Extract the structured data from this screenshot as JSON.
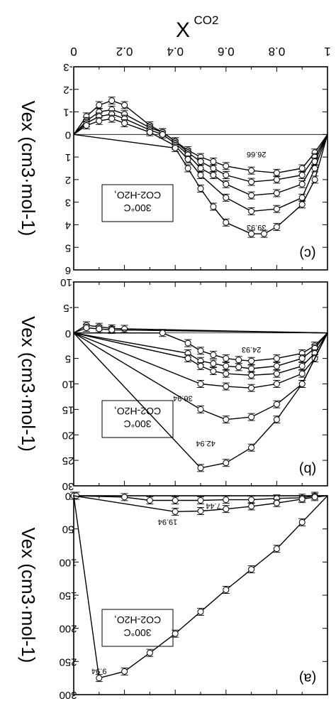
{
  "figure": {
    "top_axis_title": "X",
    "top_axis_title_sub": "CO2",
    "top_ticks": [
      "0",
      "0.2",
      "0.4",
      "0.6",
      "0.8",
      "1"
    ]
  },
  "chart_data": [
    {
      "type": "line",
      "panel_label": "(c)",
      "ylabel": "Vex (cm3·mol-1)",
      "system_label_line1": "300°C",
      "system_label_line2": "CO2-H2O,",
      "xlim": [
        0,
        1
      ],
      "ylim": [
        -3,
        6
      ],
      "y_ticks": [
        "-3",
        "-2",
        "-1",
        "0",
        "1",
        "2",
        "3",
        "4",
        "5",
        "6"
      ],
      "annotations": [
        "26.66",
        "39.93"
      ],
      "series": [
        {
          "x": [
            0.05,
            0.1,
            0.15,
            0.2,
            0.3,
            0.35,
            0.4,
            0.45,
            0.5,
            0.55,
            0.6,
            0.7,
            0.8,
            0.9,
            0.95
          ],
          "values": [
            -0.8,
            -1.3,
            -1.5,
            -1.3,
            -0.4,
            -0.1,
            0.3,
            0.7,
            1.0,
            1.2,
            1.4,
            1.6,
            1.7,
            1.5,
            0.8
          ]
        },
        {
          "x": [
            0.05,
            0.1,
            0.15,
            0.2,
            0.3,
            0.35,
            0.4,
            0.45,
            0.5,
            0.55,
            0.6,
            0.7,
            0.8,
            0.9,
            0.95
          ],
          "values": [
            -0.6,
            -1.0,
            -1.1,
            -0.9,
            -0.3,
            -0.1,
            0.3,
            0.8,
            1.2,
            1.5,
            1.8,
            2.1,
            2.0,
            1.8,
            1.0
          ]
        },
        {
          "x": [
            0.05,
            0.1,
            0.15,
            0.2,
            0.3,
            0.35,
            0.4,
            0.45,
            0.5,
            0.55,
            0.6,
            0.7,
            0.8,
            0.9,
            0.95
          ],
          "values": [
            -0.5,
            -0.8,
            -0.9,
            -0.7,
            -0.2,
            0.0,
            0.4,
            0.9,
            1.5,
            1.8,
            2.2,
            2.7,
            2.6,
            2.2,
            1.2
          ]
        },
        {
          "x": [
            0.05,
            0.1,
            0.15,
            0.2,
            0.3,
            0.4,
            0.45,
            0.5,
            0.6,
            0.7,
            0.8,
            0.9,
            0.95
          ],
          "values": [
            -0.4,
            -0.6,
            -0.7,
            -0.5,
            -0.1,
            0.5,
            1.1,
            1.8,
            2.8,
            3.4,
            3.3,
            2.8,
            1.5
          ]
        },
        {
          "x": [
            0.4,
            0.45,
            0.5,
            0.55,
            0.6,
            0.7,
            0.75,
            0.8,
            0.9,
            0.95
          ],
          "values": [
            0.6,
            1.5,
            2.4,
            3.2,
            3.9,
            4.4,
            4.4,
            4.1,
            3.1,
            2.0
          ]
        }
      ]
    },
    {
      "type": "line",
      "panel_label": "(b)",
      "ylabel": "Vex (cm3·mol-1)",
      "system_label_line1": "300°C",
      "system_label_line2": "CO2-H2O,",
      "xlim": [
        0,
        1
      ],
      "ylim": [
        -10,
        30
      ],
      "y_ticks": [
        "-10",
        "-5",
        "0",
        "5",
        "10",
        "15",
        "20",
        "25",
        "30"
      ],
      "annotations": [
        "24.93",
        "36.94",
        "42.94"
      ],
      "series": [
        {
          "x": [
            0.05,
            0.1,
            0.15,
            0.2
          ],
          "values": [
            -1.5,
            -1.2,
            -0.9,
            -0.8
          ]
        },
        {
          "x": [
            0.05,
            0.1,
            0.15
          ],
          "values": [
            -1.0,
            -0.8,
            -0.6
          ]
        },
        {
          "x": [
            0.35,
            0.45,
            0.5,
            0.55,
            0.6,
            0.65,
            0.7,
            0.8,
            0.9,
            0.95
          ],
          "values": [
            0.0,
            2.0,
            3.5,
            4.3,
            5.0,
            5.3,
            5.5,
            5.0,
            4.0,
            2.5
          ]
        },
        {
          "x": [
            0.45,
            0.5,
            0.55,
            0.6,
            0.65,
            0.7,
            0.8,
            0.9,
            0.95
          ],
          "values": [
            4.0,
            5.5,
            6.0,
            6.5,
            6.7,
            7.0,
            6.5,
            5.0,
            3.0
          ]
        },
        {
          "x": [
            0.45,
            0.5,
            0.55,
            0.6,
            0.7,
            0.8,
            0.9,
            0.95
          ],
          "values": [
            5.0,
            6.5,
            7.5,
            8.0,
            8.3,
            8.0,
            6.5,
            4.0
          ]
        },
        {
          "x": [
            0.5,
            0.6,
            0.7,
            0.8,
            0.9,
            0.95
          ],
          "values": [
            10.0,
            10.5,
            10.8,
            10.0,
            8.0,
            5.0
          ]
        },
        {
          "x": [
            0.5,
            0.6,
            0.7,
            0.8,
            0.9
          ],
          "values": [
            15.0,
            17.0,
            16.5,
            14.0,
            10.0
          ]
        },
        {
          "x": [
            0.5,
            0.6,
            0.7,
            0.8,
            0.9
          ],
          "values": [
            26.5,
            25.5,
            22.5,
            17.0,
            10.0
          ]
        }
      ]
    },
    {
      "type": "line",
      "panel_label": "(a)",
      "ylabel": "Vex (cm3·mol-1)",
      "system_label_line1": "300°C",
      "system_label_line2": "CO2-H2O,",
      "xlim": [
        0,
        1
      ],
      "ylim": [
        0,
        300
      ],
      "y_ticks": [
        "0",
        "50",
        "100",
        "150",
        "200",
        "250",
        "300"
      ],
      "annotations": [
        "7.44",
        "19.94",
        "9.94"
      ],
      "series": [
        {
          "x": [
            0.0,
            0.01,
            0.2,
            0.3,
            0.4,
            0.5,
            0.6,
            0.7,
            0.8,
            0.9,
            0.95
          ],
          "values": [
            0,
            0,
            2,
            7,
            7,
            7,
            6,
            6,
            4,
            3,
            0
          ]
        },
        {
          "x": [
            0.4,
            0.5,
            0.6,
            0.7,
            0.8,
            0.9,
            0.95
          ],
          "values": [
            24,
            23,
            20,
            16,
            11,
            5,
            2
          ]
        },
        {
          "x": [
            0.1,
            0.2,
            0.3,
            0.4,
            0.5,
            0.6,
            0.7,
            0.8,
            0.9
          ],
          "values": [
            275,
            265,
            237,
            208,
            175,
            142,
            111,
            80,
            40
          ]
        }
      ]
    }
  ]
}
